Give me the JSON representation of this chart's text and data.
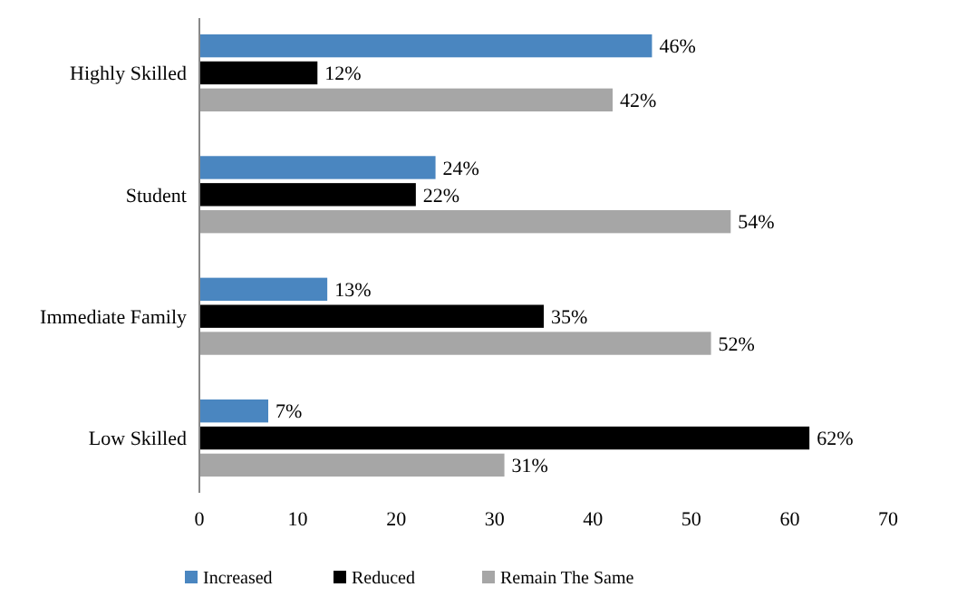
{
  "chart_data": {
    "type": "bar",
    "orientation": "horizontal",
    "categories": [
      "Highly Skilled",
      "Student",
      "Immediate Family",
      "Low Skilled"
    ],
    "series": [
      {
        "name": "Increased",
        "color": "#4a86c0",
        "values": [
          46,
          24,
          13,
          7
        ],
        "value_labels": [
          "46%",
          "24%",
          "13%",
          "7%"
        ]
      },
      {
        "name": "Reduced",
        "color": "#000000",
        "values": [
          12,
          22,
          35,
          62
        ],
        "value_labels": [
          "12%",
          "22%",
          "35%",
          "62%"
        ]
      },
      {
        "name": "Remain The Same",
        "color": "#a6a6a6",
        "values": [
          42,
          54,
          52,
          31
        ],
        "value_labels": [
          "42%",
          "54%",
          "52%",
          "31%"
        ]
      }
    ],
    "xlim": [
      0,
      70
    ],
    "xticks": [
      0,
      10,
      20,
      30,
      40,
      50,
      60,
      70
    ],
    "grid": false,
    "legend": "bottom"
  }
}
